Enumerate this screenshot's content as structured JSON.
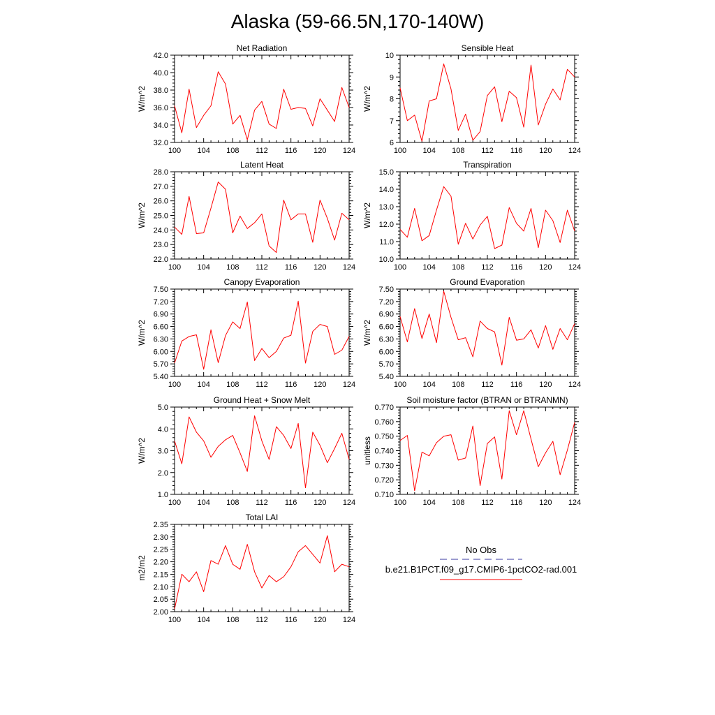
{
  "title": "Alaska (59-66.5N,170-140W)",
  "legend": {
    "entries": [
      {
        "name": "No Obs",
        "color": "#3a3aa0",
        "dash": true
      },
      {
        "name": "b.e21.B1PCT.f09_g17.CMIP6-1pctCO2-rad.001",
        "color": "#ff0000",
        "dash": false
      }
    ]
  },
  "chart_data": [
    {
      "type": "line",
      "title": "Net Radiation",
      "ylabel": "W/m^2",
      "xlim": [
        100,
        124
      ],
      "ylim": [
        32.0,
        42.0
      ],
      "xticks": [
        100,
        104,
        108,
        112,
        116,
        120,
        124
      ],
      "yticks": [
        "32.0",
        "34.0",
        "36.0",
        "38.0",
        "40.0",
        "42.0"
      ],
      "x": [
        100,
        101,
        102,
        103,
        104,
        105,
        106,
        107,
        108,
        109,
        110,
        111,
        112,
        113,
        114,
        115,
        116,
        117,
        118,
        119,
        120,
        121,
        122,
        123,
        124
      ],
      "series": [
        {
          "color": "#ff0000",
          "values": [
            36.2,
            33.1,
            38.1,
            33.7,
            35.1,
            36.2,
            40.1,
            38.7,
            34.1,
            35.1,
            32.3,
            35.7,
            36.7,
            34.1,
            33.6,
            38.1,
            35.8,
            36.0,
            35.9,
            33.9,
            37.0,
            35.7,
            34.4,
            38.3,
            36.0
          ]
        }
      ]
    },
    {
      "type": "line",
      "title": "Sensible Heat",
      "ylabel": "W/m^2",
      "xlim": [
        100,
        124
      ],
      "ylim": [
        6,
        10
      ],
      "xticks": [
        100,
        104,
        108,
        112,
        116,
        120,
        124
      ],
      "yticks": [
        "6",
        "7",
        "8",
        "9",
        "10"
      ],
      "x": [
        100,
        101,
        102,
        103,
        104,
        105,
        106,
        107,
        108,
        109,
        110,
        111,
        112,
        113,
        114,
        115,
        116,
        117,
        118,
        119,
        120,
        121,
        122,
        123,
        124
      ],
      "series": [
        {
          "color": "#ff0000",
          "values": [
            8.5,
            7.0,
            7.25,
            6.05,
            7.9,
            8.0,
            9.6,
            8.45,
            6.55,
            7.3,
            6.1,
            6.5,
            8.15,
            8.55,
            6.95,
            8.35,
            8.05,
            6.7,
            9.55,
            6.8,
            7.75,
            8.45,
            7.95,
            9.35,
            9.0
          ]
        }
      ]
    },
    {
      "type": "line",
      "title": "Latent Heat",
      "ylabel": "W/m^2",
      "xlim": [
        100,
        124
      ],
      "ylim": [
        22.0,
        28.0
      ],
      "xticks": [
        100,
        104,
        108,
        112,
        116,
        120,
        124
      ],
      "yticks": [
        "22.0",
        "23.0",
        "24.0",
        "25.0",
        "26.0",
        "27.0",
        "28.0"
      ],
      "x": [
        100,
        101,
        102,
        103,
        104,
        105,
        106,
        107,
        108,
        109,
        110,
        111,
        112,
        113,
        114,
        115,
        116,
        117,
        118,
        119,
        120,
        121,
        122,
        123,
        124
      ],
      "series": [
        {
          "color": "#ff0000",
          "values": [
            24.2,
            23.7,
            26.3,
            23.75,
            23.8,
            25.5,
            27.3,
            26.8,
            23.8,
            24.95,
            24.1,
            24.5,
            25.1,
            22.9,
            22.45,
            26.05,
            24.7,
            25.1,
            25.1,
            23.15,
            26.05,
            24.8,
            23.3,
            25.15,
            24.7
          ]
        }
      ]
    },
    {
      "type": "line",
      "title": "Transpiration",
      "ylabel": "W/m^2",
      "xlim": [
        100,
        124
      ],
      "ylim": [
        10.0,
        15.0
      ],
      "xticks": [
        100,
        104,
        108,
        112,
        116,
        120,
        124
      ],
      "yticks": [
        "10.0",
        "11.0",
        "12.0",
        "13.0",
        "14.0",
        "15.0"
      ],
      "x": [
        100,
        101,
        102,
        103,
        104,
        105,
        106,
        107,
        108,
        109,
        110,
        111,
        112,
        113,
        114,
        115,
        116,
        117,
        118,
        119,
        120,
        121,
        122,
        123,
        124
      ],
      "series": [
        {
          "color": "#ff0000",
          "values": [
            11.7,
            11.25,
            12.9,
            11.05,
            11.35,
            12.8,
            14.15,
            13.6,
            10.85,
            12.05,
            11.15,
            11.95,
            12.45,
            10.6,
            10.8,
            12.95,
            12.05,
            11.6,
            12.9,
            10.65,
            12.8,
            12.2,
            10.95,
            12.8,
            11.6
          ]
        }
      ]
    },
    {
      "type": "line",
      "title": "Canopy Evaporation",
      "ylabel": "W/m^2",
      "xlim": [
        100,
        124
      ],
      "ylim": [
        5.4,
        7.5
      ],
      "xticks": [
        100,
        104,
        108,
        112,
        116,
        120,
        124
      ],
      "yticks": [
        "5.40",
        "5.70",
        "6.00",
        "6.30",
        "6.60",
        "6.90",
        "7.20",
        "7.50"
      ],
      "x": [
        100,
        101,
        102,
        103,
        104,
        105,
        106,
        107,
        108,
        109,
        110,
        111,
        112,
        113,
        114,
        115,
        116,
        117,
        118,
        119,
        120,
        121,
        122,
        123,
        124
      ],
      "series": [
        {
          "color": "#ff0000",
          "values": [
            5.72,
            6.25,
            6.36,
            6.4,
            5.57,
            6.52,
            5.73,
            6.38,
            6.71,
            6.55,
            7.19,
            5.78,
            6.07,
            5.85,
            6.0,
            6.32,
            6.39,
            7.21,
            5.72,
            6.48,
            6.65,
            6.6,
            5.93,
            6.03,
            6.36
          ]
        }
      ]
    },
    {
      "type": "line",
      "title": "Ground Evaporation",
      "ylabel": "W/m^2",
      "xlim": [
        100,
        124
      ],
      "ylim": [
        5.4,
        7.5
      ],
      "xticks": [
        100,
        104,
        108,
        112,
        116,
        120,
        124
      ],
      "yticks": [
        "5.40",
        "5.70",
        "6.00",
        "6.30",
        "6.60",
        "6.90",
        "7.20",
        "7.50"
      ],
      "x": [
        100,
        101,
        102,
        103,
        104,
        105,
        106,
        107,
        108,
        109,
        110,
        111,
        112,
        113,
        114,
        115,
        116,
        117,
        118,
        119,
        120,
        121,
        122,
        123,
        124
      ],
      "series": [
        {
          "color": "#ff0000",
          "values": [
            6.84,
            6.23,
            7.03,
            6.31,
            6.9,
            6.21,
            7.45,
            6.82,
            6.28,
            6.33,
            5.87,
            6.73,
            6.55,
            6.47,
            5.67,
            6.82,
            6.27,
            6.3,
            6.52,
            6.08,
            6.62,
            6.05,
            6.55,
            6.28,
            6.67
          ]
        }
      ]
    },
    {
      "type": "line",
      "title": "Ground Heat + Snow Melt",
      "ylabel": "W/m^2",
      "xlim": [
        100,
        124
      ],
      "ylim": [
        1.0,
        5.0
      ],
      "xticks": [
        100,
        104,
        108,
        112,
        116,
        120,
        124
      ],
      "yticks": [
        "1.0",
        "2.0",
        "3.0",
        "4.0",
        "5.0"
      ],
      "x": [
        100,
        101,
        102,
        103,
        104,
        105,
        106,
        107,
        108,
        109,
        110,
        111,
        112,
        113,
        114,
        115,
        116,
        117,
        118,
        119,
        120,
        121,
        122,
        123,
        124
      ],
      "series": [
        {
          "color": "#ff0000",
          "values": [
            3.45,
            2.4,
            4.55,
            3.85,
            3.45,
            2.7,
            3.2,
            3.5,
            3.7,
            2.9,
            2.05,
            4.6,
            3.45,
            2.6,
            4.1,
            3.7,
            3.1,
            4.25,
            1.3,
            3.85,
            3.25,
            2.45,
            3.1,
            3.8,
            2.6
          ]
        }
      ]
    },
    {
      "type": "line",
      "title": "Soil moisture factor (BTRAN or BTRANMN)",
      "ylabel": "unitless",
      "xlim": [
        100,
        124
      ],
      "ylim": [
        0.71,
        0.77
      ],
      "xticks": [
        100,
        104,
        108,
        112,
        116,
        120,
        124
      ],
      "yticks": [
        "0.710",
        "0.720",
        "0.730",
        "0.740",
        "0.750",
        "0.760",
        "0.770"
      ],
      "x": [
        100,
        101,
        102,
        103,
        104,
        105,
        106,
        107,
        108,
        109,
        110,
        111,
        112,
        113,
        114,
        115,
        116,
        117,
        118,
        119,
        120,
        121,
        122,
        123,
        124
      ],
      "series": [
        {
          "color": "#ff0000",
          "values": [
            0.747,
            0.7505,
            0.7125,
            0.739,
            0.7365,
            0.7455,
            0.75,
            0.751,
            0.7335,
            0.735,
            0.757,
            0.716,
            0.745,
            0.7495,
            0.7205,
            0.7675,
            0.751,
            0.7675,
            0.748,
            0.729,
            0.7385,
            0.7465,
            0.7235,
            0.7405,
            0.7595
          ]
        }
      ]
    },
    {
      "type": "line",
      "title": "Total LAI",
      "ylabel": "m2/m2",
      "xlim": [
        100,
        124
      ],
      "ylim": [
        2.0,
        2.35
      ],
      "xticks": [
        100,
        104,
        108,
        112,
        116,
        120,
        124
      ],
      "yticks": [
        "2.00",
        "2.05",
        "2.10",
        "2.15",
        "2.20",
        "2.25",
        "2.30",
        "2.35"
      ],
      "x": [
        100,
        101,
        102,
        103,
        104,
        105,
        106,
        107,
        108,
        109,
        110,
        111,
        112,
        113,
        114,
        115,
        116,
        117,
        118,
        119,
        120,
        121,
        122,
        123,
        124
      ],
      "series": [
        {
          "color": "#ff0000",
          "values": [
            2.01,
            2.15,
            2.12,
            2.16,
            2.08,
            2.205,
            2.19,
            2.265,
            2.19,
            2.17,
            2.27,
            2.16,
            2.095,
            2.145,
            2.12,
            2.14,
            2.18,
            2.24,
            2.265,
            2.23,
            2.195,
            2.305,
            2.16,
            2.19,
            2.18
          ]
        }
      ]
    }
  ]
}
